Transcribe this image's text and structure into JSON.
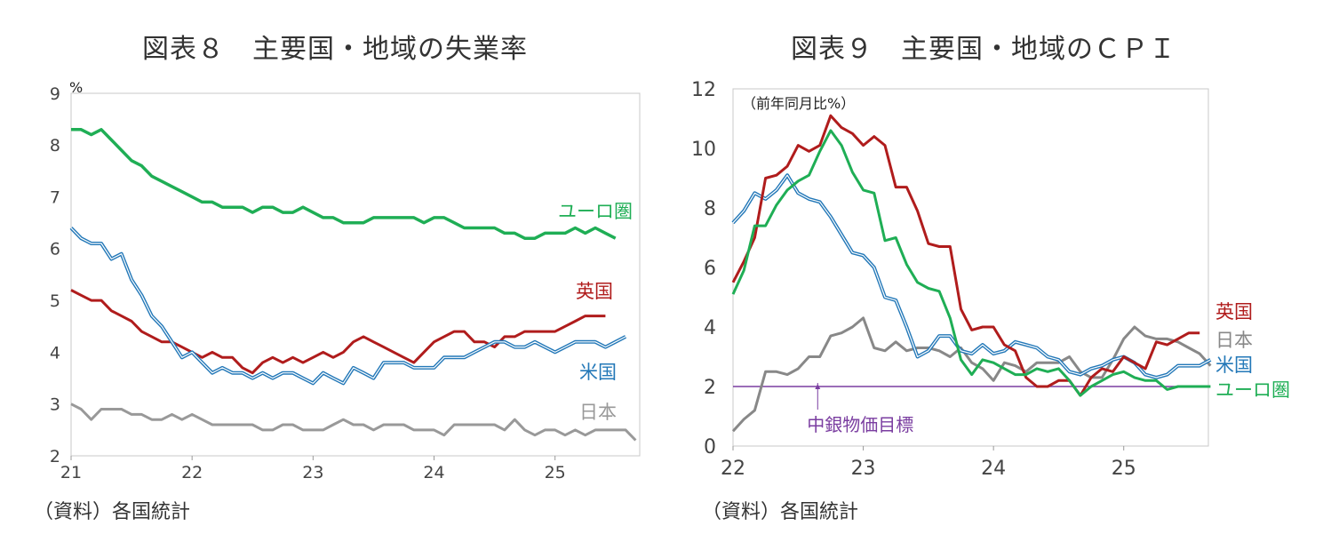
{
  "chart_data": [
    {
      "type": "line",
      "title": "図表８　主要国・地域の失業率",
      "unit": "%",
      "source": "（資料）各国統計",
      "x_start": 2021.0,
      "x_step": 0.08333,
      "xlim": [
        2021,
        2025.7
      ],
      "ylim": [
        2,
        9
      ],
      "yticks": [
        2,
        3,
        4,
        5,
        6,
        7,
        8,
        9
      ],
      "xticks": [
        {
          "v": 2021,
          "label": "21"
        },
        {
          "v": 2022,
          "label": "22"
        },
        {
          "v": 2023,
          "label": "23"
        },
        {
          "v": 2024,
          "label": "24"
        },
        {
          "v": 2025,
          "label": "25"
        }
      ],
      "series": [
        {
          "name": "ユーロ圏",
          "color": "#1fae55",
          "width": 3.5,
          "style": "solid",
          "values": [
            8.3,
            8.3,
            8.2,
            8.3,
            8.1,
            7.9,
            7.7,
            7.6,
            7.4,
            7.3,
            7.2,
            7.1,
            7.0,
            6.9,
            6.9,
            6.8,
            6.8,
            6.8,
            6.7,
            6.8,
            6.8,
            6.7,
            6.7,
            6.8,
            6.7,
            6.6,
            6.6,
            6.5,
            6.5,
            6.5,
            6.6,
            6.6,
            6.6,
            6.6,
            6.6,
            6.5,
            6.6,
            6.6,
            6.5,
            6.4,
            6.4,
            6.4,
            6.4,
            6.3,
            6.3,
            6.2,
            6.2,
            6.3,
            6.3,
            6.3,
            6.4,
            6.3,
            6.4,
            6.3,
            6.2
          ]
        },
        {
          "name": "英国",
          "color": "#b01c1c",
          "width": 3,
          "style": "solid",
          "values": [
            5.2,
            5.1,
            5.0,
            5.0,
            4.8,
            4.7,
            4.6,
            4.4,
            4.3,
            4.2,
            4.2,
            4.1,
            4.0,
            3.9,
            4.0,
            3.9,
            3.9,
            3.7,
            3.6,
            3.8,
            3.9,
            3.8,
            3.9,
            3.8,
            3.9,
            4.0,
            3.9,
            4.0,
            4.2,
            4.3,
            4.2,
            4.1,
            4.0,
            3.9,
            3.8,
            4.0,
            4.2,
            4.3,
            4.4,
            4.4,
            4.2,
            4.2,
            4.1,
            4.3,
            4.3,
            4.4,
            4.4,
            4.4,
            4.4,
            4.5,
            4.6,
            4.7,
            4.7,
            4.7
          ]
        },
        {
          "name": "米国",
          "color": "#2378b8",
          "width": 3,
          "style": "double",
          "values": [
            6.4,
            6.2,
            6.1,
            6.1,
            5.8,
            5.9,
            5.4,
            5.1,
            4.7,
            4.5,
            4.2,
            3.9,
            4.0,
            3.8,
            3.6,
            3.7,
            3.6,
            3.6,
            3.5,
            3.6,
            3.5,
            3.6,
            3.6,
            3.5,
            3.4,
            3.6,
            3.5,
            3.4,
            3.7,
            3.6,
            3.5,
            3.8,
            3.8,
            3.8,
            3.7,
            3.7,
            3.7,
            3.9,
            3.9,
            3.9,
            4.0,
            4.1,
            4.2,
            4.2,
            4.1,
            4.1,
            4.2,
            4.1,
            4.0,
            4.1,
            4.2,
            4.2,
            4.2,
            4.1,
            4.2,
            4.3
          ]
        },
        {
          "name": "日本",
          "color": "#999999",
          "width": 3,
          "style": "solid",
          "values": [
            3.0,
            2.9,
            2.7,
            2.9,
            2.9,
            2.9,
            2.8,
            2.8,
            2.7,
            2.7,
            2.8,
            2.7,
            2.8,
            2.7,
            2.6,
            2.6,
            2.6,
            2.6,
            2.6,
            2.5,
            2.5,
            2.6,
            2.6,
            2.5,
            2.5,
            2.5,
            2.6,
            2.7,
            2.6,
            2.6,
            2.5,
            2.6,
            2.6,
            2.6,
            2.5,
            2.5,
            2.5,
            2.4,
            2.6,
            2.6,
            2.6,
            2.6,
            2.6,
            2.5,
            2.7,
            2.5,
            2.4,
            2.5,
            2.5,
            2.4,
            2.5,
            2.4,
            2.5,
            2.5,
            2.5,
            2.5,
            2.3
          ]
        }
      ],
      "series_labels": [
        {
          "name": "ユーロ圏",
          "color": "#1fae55"
        },
        {
          "name": "英国",
          "color": "#b01c1c"
        },
        {
          "name": "米国",
          "color": "#2378b8"
        },
        {
          "name": "日本",
          "color": "#999999"
        }
      ]
    },
    {
      "type": "line",
      "title": "図表９　主要国・地域のＣＰＩ",
      "unit": "（前年同月比%）",
      "source": "（資料）各国統計",
      "x_start": 2022.0,
      "x_step": 0.08333,
      "xlim": [
        2022,
        2025.65
      ],
      "ylim": [
        0,
        12
      ],
      "yticks": [
        0,
        2,
        4,
        6,
        8,
        10,
        12
      ],
      "xticks": [
        {
          "v": 2022,
          "label": "22"
        },
        {
          "v": 2023,
          "label": "23"
        },
        {
          "v": 2024,
          "label": "24"
        },
        {
          "v": 2025,
          "label": "25"
        }
      ],
      "reference_line": {
        "value": 2,
        "label": "中銀物価目標",
        "color": "#7a3da0",
        "x": 2022.65
      },
      "series": [
        {
          "name": "日本",
          "color": "#888888",
          "width": 3,
          "style": "solid",
          "values": [
            0.5,
            0.9,
            1.2,
            2.5,
            2.5,
            2.4,
            2.6,
            3.0,
            3.0,
            3.7,
            3.8,
            4.0,
            4.3,
            3.3,
            3.2,
            3.5,
            3.2,
            3.3,
            3.3,
            3.2,
            3.0,
            3.3,
            2.8,
            2.6,
            2.2,
            2.8,
            2.7,
            2.5,
            2.8,
            2.8,
            2.8,
            3.0,
            2.5,
            2.3,
            2.3,
            2.9,
            3.6,
            4.0,
            3.7,
            3.6,
            3.6,
            3.5,
            3.3,
            3.1,
            2.7
          ]
        },
        {
          "name": "米国",
          "color": "#2378b8",
          "width": 3,
          "style": "double",
          "values": [
            7.5,
            7.9,
            8.5,
            8.3,
            8.6,
            9.1,
            8.5,
            8.3,
            8.2,
            7.7,
            7.1,
            6.5,
            6.4,
            6.0,
            5.0,
            4.9,
            4.0,
            3.0,
            3.2,
            3.7,
            3.7,
            3.2,
            3.1,
            3.4,
            3.1,
            3.2,
            3.5,
            3.4,
            3.3,
            3.0,
            2.9,
            2.5,
            2.4,
            2.6,
            2.7,
            2.9,
            3.0,
            2.8,
            2.4,
            2.3,
            2.4,
            2.7,
            2.7,
            2.7,
            2.9
          ]
        },
        {
          "name": "英国",
          "color": "#b01c1c",
          "width": 3,
          "style": "solid",
          "values": [
            5.5,
            6.2,
            7.0,
            9.0,
            9.1,
            9.4,
            10.1,
            9.9,
            10.1,
            11.1,
            10.7,
            10.5,
            10.1,
            10.4,
            10.1,
            8.7,
            8.7,
            7.9,
            6.8,
            6.7,
            6.7,
            4.6,
            3.9,
            4.0,
            4.0,
            3.4,
            3.2,
            2.3,
            2.0,
            2.0,
            2.2,
            2.2,
            1.7,
            2.3,
            2.6,
            2.5,
            3.0,
            2.8,
            2.6,
            3.5,
            3.4,
            3.6,
            3.8,
            3.8
          ]
        },
        {
          "name": "ユーロ圏",
          "color": "#1fae55",
          "width": 3,
          "style": "solid",
          "values": [
            5.1,
            5.9,
            7.4,
            7.4,
            8.1,
            8.6,
            8.9,
            9.1,
            9.9,
            10.6,
            10.1,
            9.2,
            8.6,
            8.5,
            6.9,
            7.0,
            6.1,
            5.5,
            5.3,
            5.2,
            4.3,
            2.9,
            2.4,
            2.9,
            2.8,
            2.6,
            2.4,
            2.4,
            2.6,
            2.5,
            2.6,
            2.2,
            1.7,
            2.0,
            2.2,
            2.4,
            2.5,
            2.3,
            2.2,
            2.2,
            1.9,
            2.0,
            2.0,
            2.0,
            2.0
          ]
        }
      ],
      "series_labels": [
        {
          "name": "英国",
          "color": "#b01c1c"
        },
        {
          "name": "日本",
          "color": "#888888"
        },
        {
          "name": "米国",
          "color": "#2378b8"
        },
        {
          "name": "ユーロ圏",
          "color": "#1fae55"
        }
      ]
    }
  ]
}
